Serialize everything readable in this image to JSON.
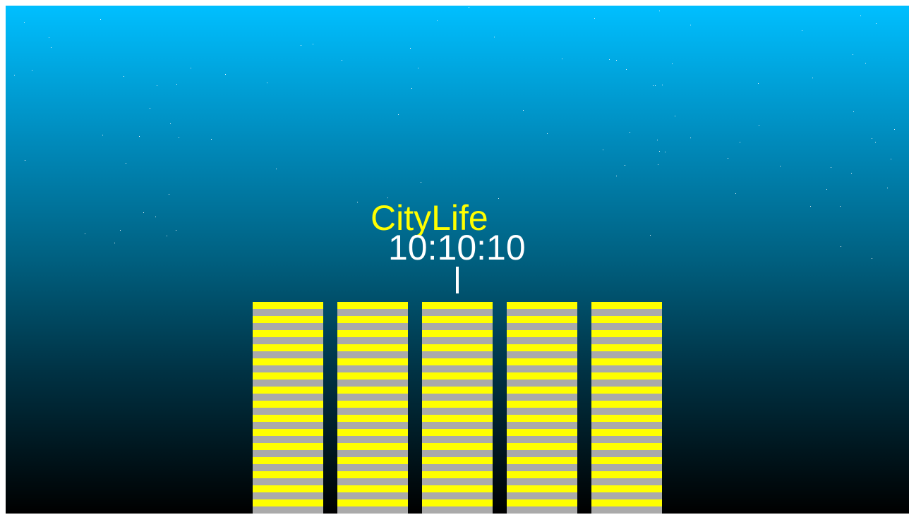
{
  "app": {
    "title": "CityLife",
    "clock": "10:10:10"
  },
  "colors": {
    "sky_top": "#00bfff",
    "sky_bottom": "#000000",
    "title": "#ffff00",
    "clock": "#ffffff",
    "building_stripe_a": "#ffff00",
    "building_stripe_b": "#aaaaaa",
    "star": "#ffffff"
  },
  "buildings": [
    {
      "id": "building-1"
    },
    {
      "id": "building-2"
    },
    {
      "id": "building-3"
    },
    {
      "id": "building-4"
    },
    {
      "id": "building-5"
    }
  ]
}
